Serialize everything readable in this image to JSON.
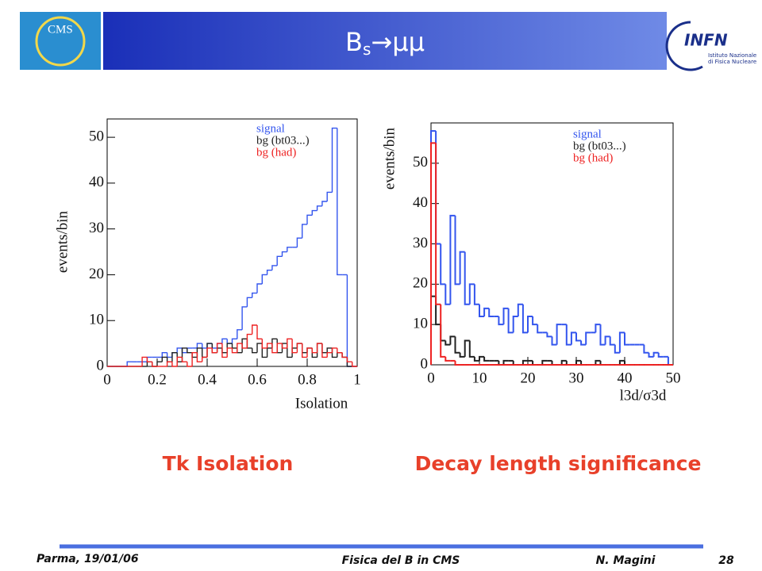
{
  "header": {
    "title_main": "B",
    "title_sub": "s",
    "title_rest": "→μμ",
    "logo_left": "CMS",
    "logo_right": "INFN",
    "logo_right_line1": "Istituto Nazionale",
    "logo_right_line2": "di Fisica Nucleare"
  },
  "captions": [
    "Tk Isolation",
    "Decay length significance"
  ],
  "footer": {
    "place_date": "Parma, 19/01/06",
    "talk": "Fisica del B in CMS",
    "author": "N. Magini",
    "page": "28"
  },
  "chart_data": [
    {
      "type": "histogram",
      "y_label": "events/bin",
      "x_label": "Isolation",
      "bins": [
        0,
        0.02,
        0.04,
        0.06,
        0.08,
        0.1,
        0.12,
        0.14,
        0.16,
        0.18,
        0.2,
        0.22,
        0.24,
        0.26,
        0.28,
        0.3,
        0.32,
        0.34,
        0.36,
        0.38,
        0.4,
        0.42,
        0.44,
        0.46,
        0.48,
        0.5,
        0.52,
        0.54,
        0.56,
        0.58,
        0.6,
        0.62,
        0.64,
        0.66,
        0.68,
        0.7,
        0.72,
        0.74,
        0.76,
        0.78,
        0.8,
        0.82,
        0.84,
        0.86,
        0.88,
        0.9,
        0.92,
        0.94,
        0.96,
        0.98,
        1
      ],
      "series": [
        {
          "name": "signal",
          "color": "#3355ee",
          "values": [
            0,
            0,
            0,
            0,
            1,
            1,
            1,
            1,
            2,
            2,
            2,
            3,
            2,
            3,
            4,
            3,
            4,
            4,
            5,
            4,
            5,
            4,
            5,
            6,
            5,
            6,
            8,
            13,
            15,
            16,
            18,
            20,
            21,
            22,
            24,
            25,
            26,
            26,
            28,
            31,
            33,
            34,
            35,
            36,
            38,
            52,
            20,
            20,
            0,
            0
          ]
        },
        {
          "name": "bg (bt03...)",
          "color": "#222222",
          "values": [
            0,
            0,
            0,
            0,
            0,
            0,
            0,
            0,
            1,
            0,
            1,
            2,
            1,
            3,
            1,
            4,
            3,
            2,
            4,
            2,
            5,
            3,
            4,
            3,
            5,
            4,
            3,
            6,
            4,
            3,
            5,
            2,
            4,
            6,
            3,
            5,
            2,
            4,
            5,
            3,
            4,
            2,
            5,
            3,
            4,
            2,
            3,
            2,
            0,
            0
          ]
        },
        {
          "name": "bg (had)",
          "color": "#ee2222",
          "values": [
            0,
            0,
            0,
            0,
            0,
            0,
            0,
            2,
            1,
            0,
            0,
            0,
            1,
            0,
            2,
            1,
            0,
            3,
            1,
            2,
            4,
            3,
            5,
            2,
            4,
            3,
            5,
            4,
            7,
            9,
            6,
            4,
            5,
            3,
            5,
            4,
            6,
            3,
            5,
            2,
            4,
            3,
            5,
            2,
            3,
            4,
            3,
            2,
            1,
            0
          ]
        }
      ],
      "xlim": [
        0,
        1
      ],
      "xticks": [
        0,
        0.2,
        0.4,
        0.6,
        0.8,
        1
      ],
      "ylim": [
        0,
        54
      ],
      "yticks": [
        0,
        10,
        20,
        30,
        40,
        50
      ]
    },
    {
      "type": "histogram",
      "y_label": "events/bin",
      "x_label": "l3d/σ3d",
      "bins": [
        0,
        1,
        2,
        3,
        4,
        5,
        6,
        7,
        8,
        9,
        10,
        11,
        12,
        13,
        14,
        15,
        16,
        17,
        18,
        19,
        20,
        21,
        22,
        23,
        24,
        25,
        26,
        27,
        28,
        29,
        30,
        31,
        32,
        33,
        34,
        35,
        36,
        37,
        38,
        39,
        40,
        41,
        42,
        43,
        44,
        45,
        46,
        47,
        48,
        49,
        50
      ],
      "series": [
        {
          "name": "signal",
          "color": "#3355ee",
          "values": [
            58,
            30,
            20,
            15,
            37,
            20,
            28,
            15,
            20,
            15,
            12,
            14,
            12,
            12,
            10,
            14,
            8,
            12,
            15,
            8,
            12,
            10,
            8,
            8,
            7,
            5,
            10,
            10,
            5,
            8,
            6,
            5,
            8,
            8,
            10,
            5,
            7,
            5,
            3,
            8,
            5,
            5,
            5,
            5,
            3,
            2,
            3,
            2,
            2,
            0
          ]
        },
        {
          "name": "bg (bt03...)",
          "color": "#222222",
          "values": [
            17,
            10,
            6,
            5,
            7,
            3,
            2,
            6,
            2,
            1,
            2,
            1,
            1,
            1,
            0,
            1,
            1,
            0,
            0,
            1,
            1,
            0,
            0,
            1,
            1,
            0,
            0,
            1,
            0,
            0,
            1,
            0,
            0,
            0,
            1,
            0,
            0,
            0,
            0,
            1,
            0,
            0,
            0,
            0,
            0,
            0,
            0,
            0,
            0,
            0
          ]
        },
        {
          "name": "bg (had)",
          "color": "#ee2222",
          "values": [
            55,
            15,
            2,
            1,
            1,
            0,
            0,
            0,
            0,
            0,
            0,
            0,
            0,
            0,
            0,
            0,
            0,
            0,
            0,
            0,
            0,
            0,
            0,
            0,
            0,
            0,
            0,
            0,
            0,
            0,
            0,
            0,
            0,
            0,
            0,
            0,
            0,
            0,
            0,
            0,
            0,
            0,
            0,
            0,
            0,
            0,
            0,
            0,
            0,
            0
          ]
        }
      ],
      "xlim": [
        0,
        50
      ],
      "xticks": [
        0,
        10,
        20,
        30,
        40,
        50
      ],
      "ylim": [
        0,
        60
      ],
      "yticks": [
        0,
        10,
        20,
        30,
        40,
        50
      ]
    }
  ]
}
